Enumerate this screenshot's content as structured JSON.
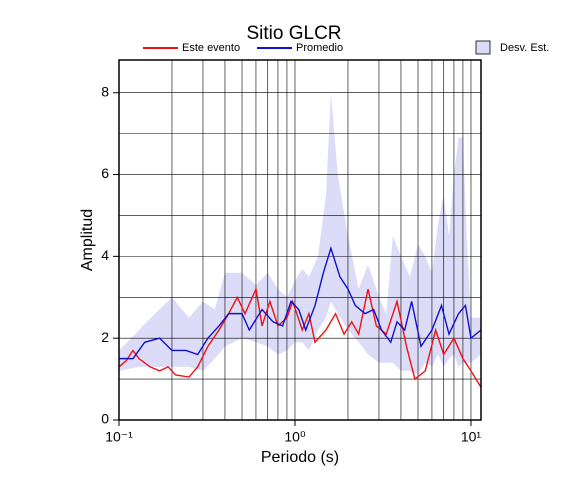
{
  "chart_data": {
    "type": "line",
    "title": "Sitio GLCR",
    "x_label": "Periodo (s)",
    "y_label": "Amplitud",
    "x_scale": "log",
    "grid": true,
    "xlim": [
      0.1,
      11.4
    ],
    "ylim": [
      0,
      8.8
    ],
    "xticks": [
      {
        "value": 0.1,
        "label": "10⁻¹"
      },
      {
        "value": 1,
        "label": "10⁰"
      },
      {
        "value": 10,
        "label": "10¹"
      }
    ],
    "x_minor_ticks": [
      0.2,
      0.3,
      0.4,
      0.5,
      0.6,
      0.7,
      0.8,
      0.9,
      2,
      3,
      4,
      5,
      6,
      7,
      8,
      9
    ],
    "yticks": [
      0,
      2,
      4,
      6,
      8
    ],
    "y_minor_ticks": [
      1,
      3,
      5,
      7
    ],
    "series": [
      {
        "name": "Desv. Est.",
        "kind": "band",
        "color": "#dcdcf8",
        "x": [
          0.1,
          0.13,
          0.16,
          0.2,
          0.25,
          0.3,
          0.35,
          0.4,
          0.5,
          0.6,
          0.7,
          0.8,
          0.9,
          1.0,
          1.1,
          1.2,
          1.35,
          1.5,
          1.6,
          1.75,
          2.0,
          2.3,
          2.6,
          3.0,
          3.3,
          3.6,
          4.0,
          4.5,
          5,
          5.5,
          6,
          6.5,
          7,
          7.5,
          8,
          8.5,
          9,
          9.5,
          10,
          11.4
        ],
        "upper": [
          1.7,
          2.2,
          2.6,
          3.0,
          2.5,
          2.9,
          2.7,
          3.6,
          3.6,
          3.3,
          3.6,
          3.2,
          3.0,
          3.4,
          3.7,
          3.5,
          4.0,
          5.5,
          8.0,
          6.0,
          4.5,
          3.2,
          3.8,
          3.0,
          2.6,
          4.5,
          4.0,
          3.5,
          4.3,
          4.0,
          3.6,
          4.8,
          5.5,
          4.5,
          6.0,
          6.9,
          6.9,
          4.3,
          2.5,
          2.5
        ],
        "lower": [
          1.2,
          1.3,
          1.3,
          1.3,
          1.3,
          1.2,
          1.5,
          1.8,
          2.0,
          1.9,
          1.8,
          1.6,
          1.7,
          1.9,
          1.9,
          1.7,
          2.2,
          2.5,
          2.9,
          2.6,
          2.2,
          1.9,
          1.6,
          1.4,
          1.4,
          1.4,
          1.2,
          1.2,
          1.1,
          1.4,
          1.3,
          1.6,
          1.3,
          1.5,
          1.6,
          1.3,
          1.4,
          1.4,
          1.4,
          1.6
        ]
      },
      {
        "name": "Este evento",
        "kind": "line",
        "color": "#ee1111",
        "x": [
          0.1,
          0.11,
          0.12,
          0.13,
          0.15,
          0.17,
          0.19,
          0.21,
          0.25,
          0.28,
          0.32,
          0.37,
          0.42,
          0.47,
          0.52,
          0.6,
          0.65,
          0.72,
          0.8,
          0.9,
          0.97,
          1.1,
          1.2,
          1.3,
          1.5,
          1.7,
          1.9,
          2.1,
          2.3,
          2.6,
          2.9,
          3.3,
          3.8,
          4.3,
          4.8,
          5.5,
          6.3,
          7.0,
          8.0,
          9.0,
          10,
          11.4
        ],
        "values": [
          1.3,
          1.45,
          1.7,
          1.5,
          1.3,
          1.2,
          1.3,
          1.1,
          1.05,
          1.3,
          1.8,
          2.2,
          2.6,
          3.0,
          2.6,
          3.2,
          2.3,
          2.9,
          2.3,
          2.5,
          2.9,
          2.2,
          2.6,
          1.9,
          2.2,
          2.6,
          2.1,
          2.4,
          2.1,
          3.2,
          2.3,
          2.1,
          2.9,
          1.8,
          1.0,
          1.2,
          2.2,
          1.6,
          2.0,
          1.5,
          1.2,
          0.8
        ]
      },
      {
        "name": "Promedio",
        "kind": "line",
        "color": "#1111cc",
        "x": [
          0.1,
          0.12,
          0.14,
          0.17,
          0.2,
          0.24,
          0.28,
          0.32,
          0.37,
          0.42,
          0.5,
          0.55,
          0.65,
          0.75,
          0.85,
          0.95,
          1.05,
          1.15,
          1.3,
          1.45,
          1.6,
          1.8,
          2.0,
          2.2,
          2.5,
          2.8,
          3.1,
          3.5,
          3.8,
          4.2,
          4.6,
          5.2,
          6,
          6.8,
          7.5,
          8.5,
          9.3,
          10,
          11.4
        ],
        "values": [
          1.5,
          1.5,
          1.9,
          2.0,
          1.7,
          1.7,
          1.6,
          2.0,
          2.3,
          2.6,
          2.6,
          2.2,
          2.7,
          2.4,
          2.3,
          2.9,
          2.7,
          2.2,
          2.8,
          3.6,
          4.2,
          3.5,
          3.2,
          2.8,
          2.6,
          2.7,
          2.2,
          1.9,
          2.4,
          2.2,
          2.9,
          1.8,
          2.2,
          2.8,
          2.1,
          2.6,
          2.8,
          2.0,
          2.2
        ]
      }
    ]
  }
}
